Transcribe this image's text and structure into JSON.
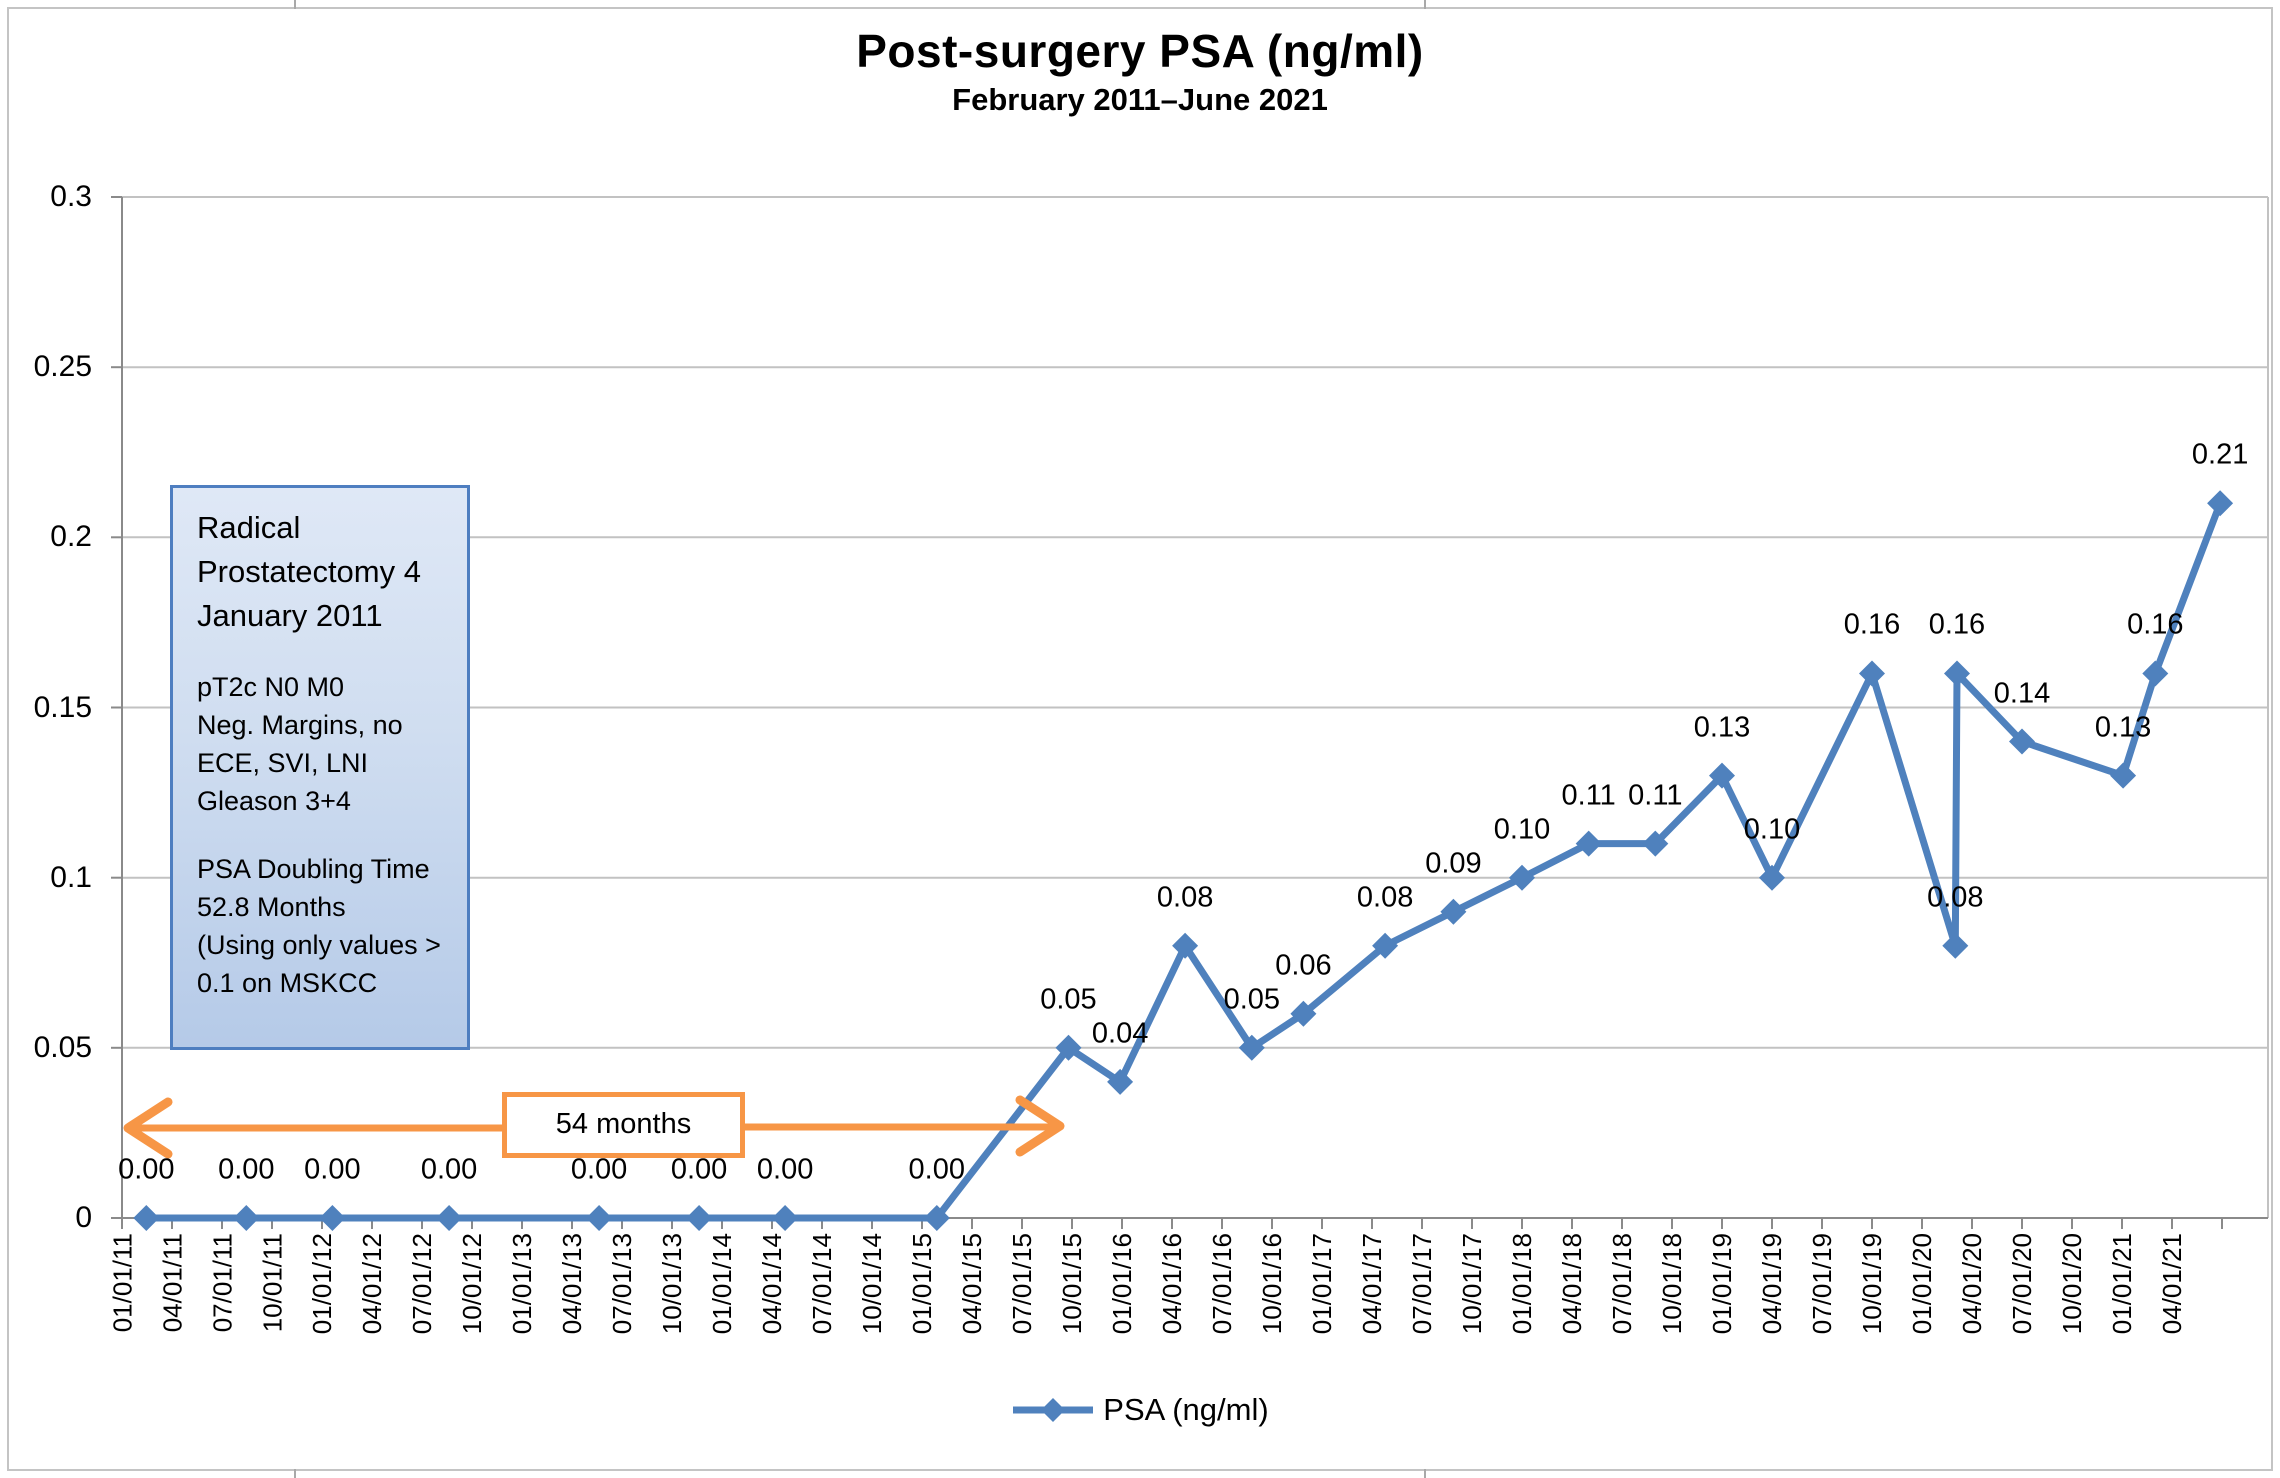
{
  "colors": {
    "series": "#4F81BD",
    "callout": "#F79646",
    "gridline": "#c2c2c2",
    "axis": "#8a8a8a"
  },
  "annotation": {
    "heading": "Radical\nProstatectomy 4\nJanuary 2011",
    "pathology": "pT2c N0 M0\nNeg. Margins, no\nECE, SVI, LNI\nGleason 3+4",
    "doubling_time": "PSA Doubling Time\n52.8 Months\n(Using only values >\n0.1 on MSKCC"
  },
  "callout": {
    "label": "54 months"
  },
  "legend": {
    "label": "PSA (ng/ml)"
  },
  "chart_data": {
    "type": "line",
    "title": "Post-surgery PSA (ng/ml)",
    "subtitle": "February 2011–June 2021",
    "xlabel": "",
    "ylabel": "",
    "grid": true,
    "legend_position": "bottom",
    "ylim": [
      0,
      0.3
    ],
    "y_ticks": [
      {
        "value": 0.3,
        "label": "0.3"
      },
      {
        "value": 0.25,
        "label": "0.25"
      },
      {
        "value": 0.2,
        "label": "0.2"
      },
      {
        "value": 0.15,
        "label": "0.15"
      },
      {
        "value": 0.1,
        "label": "0.1"
      },
      {
        "value": 0.05,
        "label": "0.05"
      },
      {
        "value": 0,
        "label": "0"
      }
    ],
    "x_tick_labels": [
      "01/01/11",
      "04/01/11",
      "07/01/11",
      "10/01/11",
      "01/01/12",
      "04/01/12",
      "07/01/12",
      "10/01/12",
      "01/01/13",
      "04/01/13",
      "07/01/13",
      "10/01/13",
      "01/01/14",
      "04/01/14",
      "07/01/14",
      "10/01/14",
      "01/01/15",
      "04/01/15",
      "07/01/15",
      "10/01/15",
      "01/01/16",
      "04/01/16",
      "07/01/16",
      "10/01/16",
      "01/01/17",
      "04/01/17",
      "07/01/17",
      "10/01/17",
      "01/01/18",
      "04/01/18",
      "07/01/18",
      "10/01/18",
      "01/01/19",
      "04/01/19",
      "07/01/19",
      "10/01/19",
      "01/01/20",
      "04/01/20",
      "07/01/20",
      "10/01/20",
      "01/01/21",
      "04/01/21"
    ],
    "series": [
      {
        "name": "PSA (ng/ml)",
        "points": [
          {
            "date": "2011-02-15",
            "value": 0,
            "label": "0.00"
          },
          {
            "date": "2011-08-15",
            "value": 0,
            "label": "0.00"
          },
          {
            "date": "2012-01-20",
            "value": 0,
            "label": "0.00"
          },
          {
            "date": "2012-08-20",
            "value": 0,
            "label": "0.00"
          },
          {
            "date": "2013-05-20",
            "value": 0,
            "label": "0.00"
          },
          {
            "date": "2013-11-20",
            "value": 0,
            "label": "0.00"
          },
          {
            "date": "2014-04-25",
            "value": 0,
            "label": "0.00"
          },
          {
            "date": "2015-01-28",
            "value": 0,
            "label": "0.00"
          },
          {
            "date": "2015-09-25",
            "value": 0.05,
            "label": "0.05"
          },
          {
            "date": "2015-12-28",
            "value": 0.04,
            "label": "0.04"
          },
          {
            "date": "2016-04-25",
            "value": 0.08,
            "label": "0.08"
          },
          {
            "date": "2016-08-25",
            "value": 0.05,
            "label": "0.05"
          },
          {
            "date": "2016-11-28",
            "value": 0.06,
            "label": "0.06"
          },
          {
            "date": "2017-04-25",
            "value": 0.08,
            "label": "0.08"
          },
          {
            "date": "2017-08-28",
            "value": 0.09,
            "label": "0.09"
          },
          {
            "date": "2018-01-01",
            "value": 0.1,
            "label": "0.10"
          },
          {
            "date": "2018-05-01",
            "value": 0.11,
            "label": "0.11"
          },
          {
            "date": "2018-09-01",
            "value": 0.11,
            "label": "0.11"
          },
          {
            "date": "2019-01-01",
            "value": 0.13,
            "label": "0.13"
          },
          {
            "date": "2019-04-01",
            "value": 0.1,
            "label": "0.10"
          },
          {
            "date": "2019-10-01",
            "value": 0.16,
            "label": "0.16"
          },
          {
            "date": "2020-03-01",
            "value": 0.08,
            "label": "0.08"
          },
          {
            "date": "2020-03-04",
            "value": 0.16,
            "label": "0.16"
          },
          {
            "date": "2020-07-01",
            "value": 0.14,
            "label": "0.14"
          },
          {
            "date": "2021-01-03",
            "value": 0.13,
            "label": "0.13"
          },
          {
            "date": "2021-03-01",
            "value": 0.16,
            "label": "0.16"
          },
          {
            "date": "2021-06-28",
            "value": 0.21,
            "label": "0.21"
          }
        ]
      }
    ]
  }
}
